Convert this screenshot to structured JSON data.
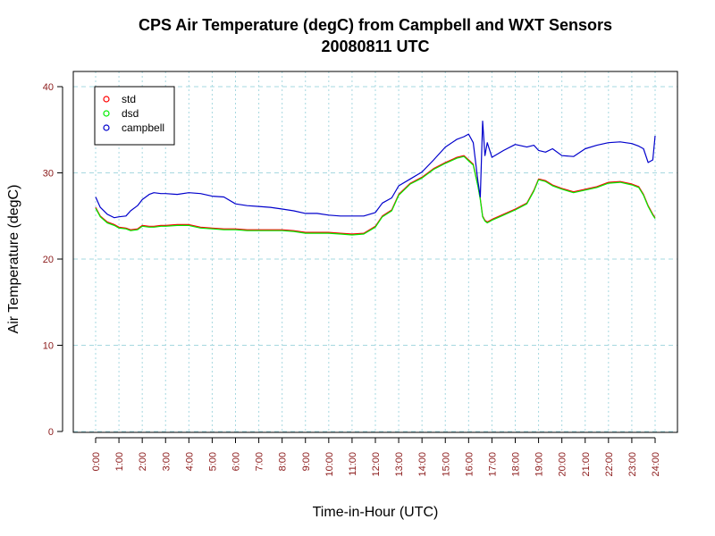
{
  "chart_data": {
    "type": "line",
    "title": "CPS Air Temperature (degC) from Campbell and WXT Sensors",
    "subtitle": "20080811  UTC",
    "xlabel": "Time-in-Hour (UTC)",
    "ylabel": "Air Temperature (degC)",
    "xlim": [
      0,
      24
    ],
    "ylim": [
      0,
      40
    ],
    "x_ticks": [
      0,
      1,
      2,
      3,
      4,
      5,
      6,
      7,
      8,
      9,
      10,
      11,
      12,
      13,
      14,
      15,
      16,
      17,
      18,
      19,
      20,
      21,
      22,
      23,
      24
    ],
    "x_tick_labels": [
      "0:00",
      "1:00",
      "2:00",
      "3:00",
      "4:00",
      "5:00",
      "6:00",
      "7:00",
      "8:00",
      "9:00",
      "10:00",
      "11:00",
      "12:00",
      "13:00",
      "14:00",
      "15:00",
      "16:00",
      "17:00",
      "18:00",
      "19:00",
      "20:00",
      "21:00",
      "22:00",
      "23:00",
      "24:00"
    ],
    "y_ticks": [
      0,
      10,
      20,
      30,
      40
    ],
    "y_tick_labels": [
      "0",
      "10",
      "20",
      "30",
      "40"
    ],
    "grid": true,
    "legend_position": "top-left",
    "x": [
      0,
      0.2,
      0.5,
      0.8,
      1.0,
      1.3,
      1.5,
      1.8,
      2.0,
      2.3,
      2.5,
      2.8,
      3.0,
      3.5,
      4.0,
      4.5,
      5.0,
      5.5,
      6.0,
      6.5,
      7.0,
      7.5,
      8.0,
      8.5,
      9.0,
      9.5,
      10.0,
      10.5,
      11.0,
      11.5,
      12.0,
      12.3,
      12.7,
      13.0,
      13.5,
      14.0,
      14.5,
      15.0,
      15.5,
      15.8,
      16.0,
      16.2,
      16.4,
      16.5,
      16.6,
      16.7,
      16.8,
      17.0,
      17.5,
      18.0,
      18.5,
      18.8,
      19.0,
      19.3,
      19.6,
      20.0,
      20.5,
      21.0,
      21.5,
      22.0,
      22.5,
      23.0,
      23.3,
      23.5,
      23.7,
      23.9,
      24.0
    ],
    "series": [
      {
        "name": "std",
        "color": "#ff0000",
        "values": [
          26.0,
          25.0,
          24.3,
          24.0,
          23.7,
          23.6,
          23.4,
          23.5,
          23.9,
          23.8,
          23.8,
          23.9,
          23.9,
          24.0,
          24.0,
          23.7,
          23.6,
          23.5,
          23.5,
          23.4,
          23.4,
          23.4,
          23.4,
          23.3,
          23.1,
          23.1,
          23.1,
          23.0,
          22.9,
          23.0,
          23.8,
          25.0,
          25.7,
          27.5,
          28.8,
          29.5,
          30.5,
          31.2,
          31.8,
          32.0,
          31.5,
          31.0,
          28.5,
          27.0,
          25.0,
          24.5,
          24.3,
          24.6,
          25.2,
          25.8,
          26.5,
          28.0,
          29.3,
          29.1,
          28.6,
          28.2,
          27.8,
          28.1,
          28.4,
          28.9,
          29.0,
          28.7,
          28.4,
          27.5,
          26.2,
          25.2,
          24.8
        ]
      },
      {
        "name": "dsd",
        "color": "#00ee00",
        "values": [
          25.9,
          24.9,
          24.2,
          23.9,
          23.6,
          23.5,
          23.3,
          23.4,
          23.8,
          23.7,
          23.7,
          23.8,
          23.8,
          23.9,
          23.9,
          23.6,
          23.5,
          23.4,
          23.4,
          23.3,
          23.3,
          23.3,
          23.3,
          23.2,
          23.0,
          23.0,
          23.0,
          22.9,
          22.8,
          22.9,
          23.7,
          24.9,
          25.6,
          27.4,
          28.7,
          29.4,
          30.4,
          31.1,
          31.7,
          31.9,
          31.4,
          30.9,
          28.4,
          26.9,
          24.9,
          24.4,
          24.2,
          24.5,
          25.1,
          25.7,
          26.4,
          27.9,
          29.2,
          29.0,
          28.5,
          28.1,
          27.7,
          28.0,
          28.3,
          28.8,
          28.9,
          28.6,
          28.3,
          27.4,
          26.1,
          25.1,
          24.7
        ]
      },
      {
        "name": "campbell",
        "color": "#0000cc",
        "values": [
          27.2,
          26.0,
          25.2,
          24.8,
          24.9,
          25.0,
          25.6,
          26.2,
          26.9,
          27.5,
          27.7,
          27.6,
          27.6,
          27.5,
          27.7,
          27.6,
          27.3,
          27.2,
          26.4,
          26.2,
          26.1,
          26.0,
          25.8,
          25.6,
          25.3,
          25.3,
          25.1,
          25.0,
          25.0,
          25.0,
          25.4,
          26.5,
          27.1,
          28.5,
          29.3,
          30.1,
          31.5,
          33.0,
          33.9,
          34.2,
          34.5,
          33.5,
          29.0,
          27.2,
          36.0,
          32.0,
          33.5,
          31.8,
          32.6,
          33.3,
          33.0,
          33.2,
          32.6,
          32.4,
          32.8,
          32.0,
          31.9,
          32.8,
          33.2,
          33.5,
          33.6,
          33.4,
          33.1,
          32.8,
          31.2,
          31.5,
          34.3
        ]
      }
    ]
  }
}
